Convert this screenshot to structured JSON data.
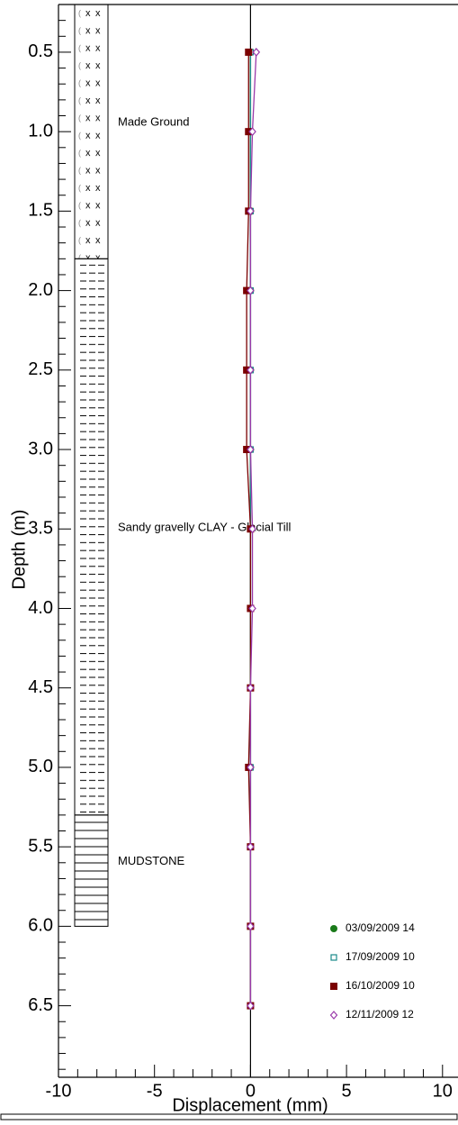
{
  "chart_data": {
    "type": "line",
    "x_label": "Displacement (mm)",
    "y_label": "Depth (m)",
    "xlim": [
      -10,
      10
    ],
    "ylim": [
      0.2,
      6.95
    ],
    "y_reversed": true,
    "xticks": [
      -10,
      -5,
      0,
      5,
      10
    ],
    "yticks": [
      0.5,
      {
        "value": 1,
        "label": "1.0"
      },
      1.5,
      {
        "value": 2,
        "label": "2.0"
      },
      2.5,
      {
        "value": 3,
        "label": "3.0"
      },
      3.5,
      {
        "value": 4,
        "label": "4.0"
      },
      4.5,
      {
        "value": 5,
        "label": "5.0"
      },
      5.5,
      {
        "value": 6,
        "label": "6.0"
      },
      6.5
    ],
    "xminorticks": [
      -9,
      -8,
      -7,
      -6,
      -4,
      -3,
      -2,
      -1,
      1,
      2,
      3,
      4,
      6,
      7,
      8,
      9
    ],
    "yminorticks": [
      0.3,
      0.4,
      0.6,
      0.7,
      0.8,
      0.9,
      1.1,
      1.2,
      1.3,
      1.4,
      1.6,
      1.7,
      1.8,
      1.9,
      2.1,
      2.2,
      2.3,
      2.4,
      2.6,
      2.7,
      2.8,
      2.9,
      3.1,
      3.2,
      3.3,
      3.4,
      3.6,
      3.7,
      3.8,
      3.9,
      4.1,
      4.2,
      4.3,
      4.4,
      4.6,
      4.7,
      4.8,
      4.9,
      5.1,
      5.2,
      5.3,
      5.4,
      5.6,
      5.7,
      5.8,
      5.9,
      6.1,
      6.2,
      6.3,
      6.4,
      6.6,
      6.7,
      6.8,
      6.9
    ],
    "depths": [
      0.5,
      1.0,
      1.5,
      2.0,
      2.5,
      3.0,
      3.5,
      4.0,
      4.5,
      5.0,
      5.5,
      6.0,
      6.5
    ],
    "series": [
      {
        "name": "03/09/2009 14",
        "color": "#1a7a1a",
        "marker": "circle",
        "values": [
          0,
          0,
          0,
          0,
          0,
          0,
          0,
          0,
          0,
          0,
          0,
          0,
          0
        ]
      },
      {
        "name": "17/09/2009 10",
        "color": "#1a8a8a",
        "marker": "open-square",
        "values": [
          0,
          0,
          0,
          0,
          0,
          0,
          0,
          0,
          0,
          0,
          0,
          0,
          0
        ]
      },
      {
        "name": "16/10/2009 10",
        "color": "#7a0000",
        "marker": "square",
        "values": [
          -0.1,
          -0.1,
          -0.1,
          -0.2,
          -0.2,
          -0.2,
          0,
          0,
          0,
          -0.1,
          0,
          0,
          0
        ]
      },
      {
        "name": "12/11/2009 12",
        "color": "#9a3aaa",
        "marker": "open-diamond",
        "values": [
          0.3,
          0.1,
          0,
          0,
          0,
          0,
          0.1,
          0.1,
          0,
          0,
          0,
          0,
          0
        ]
      }
    ],
    "strata": [
      {
        "label": "Made Ground",
        "top": 0.2,
        "bottom": 1.8,
        "pattern": "crosses"
      },
      {
        "label": "Sandy gravelly CLAY - Glacial Till",
        "top": 1.8,
        "bottom": 5.3,
        "pattern": "dashes"
      },
      {
        "label": "MUDSTONE",
        "top": 5.3,
        "bottom": 6.0,
        "pattern": "lines"
      }
    ]
  }
}
